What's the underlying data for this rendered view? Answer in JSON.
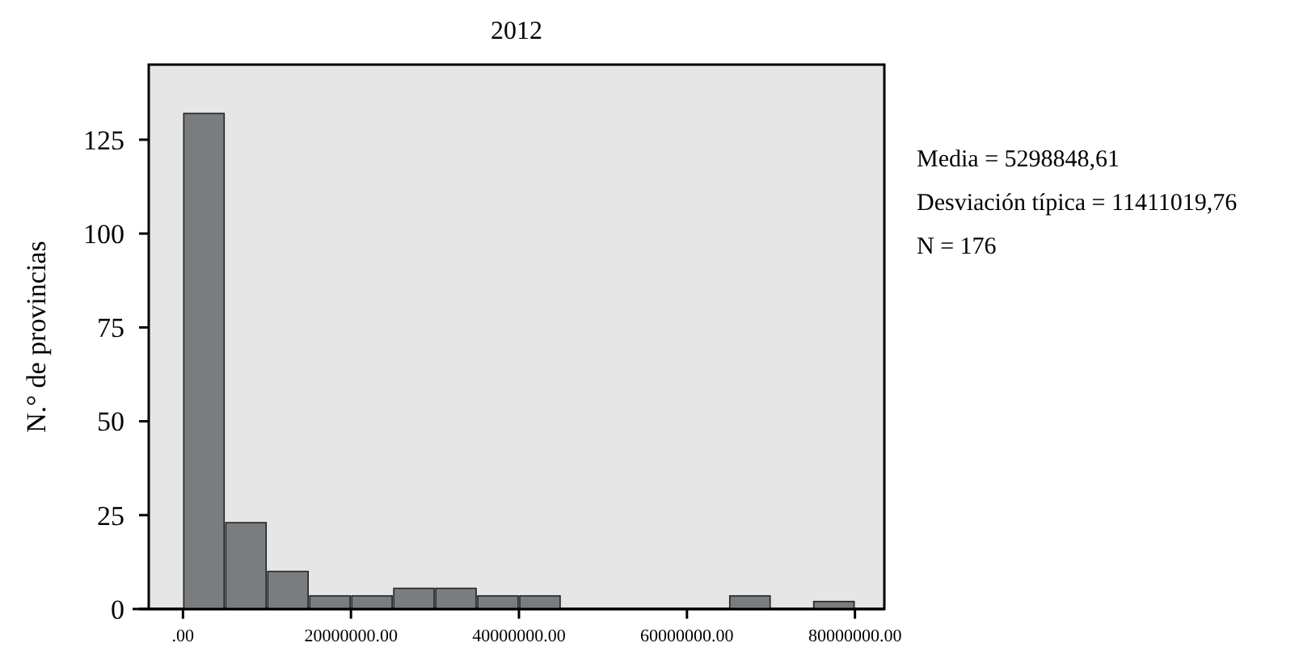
{
  "chart_data": {
    "type": "histogram",
    "title": "2012",
    "ylabel": "N.° de provincias",
    "bins": [
      0,
      5000000,
      10000000,
      15000000,
      20000000,
      25000000,
      30000000,
      35000000,
      40000000,
      45000000,
      50000000,
      55000000,
      60000000,
      65000000,
      70000000,
      75000000,
      80000000
    ],
    "values": [
      132,
      23,
      10,
      3.5,
      3.5,
      5.5,
      5.5,
      3.5,
      3.5,
      0,
      0,
      0,
      0,
      3.5,
      0,
      2
    ],
    "color": "#7a7d80",
    "xlim": [
      -6000000,
      83500000
    ],
    "xticks": [
      {
        "value": 0,
        "label": ".00"
      },
      {
        "value": 20000000,
        "label": "20000000.00"
      },
      {
        "value": 40000000,
        "label": "40000000.00"
      },
      {
        "value": 60000000,
        "label": "60000000.00"
      },
      {
        "value": 80000000,
        "label": "80000000.00"
      }
    ],
    "ylim": [
      0,
      145
    ],
    "yticks": [
      0,
      25,
      50,
      75,
      100,
      125
    ],
    "annotations": [
      "Media = 5298848,61",
      "Desviación típica = 11411019,76",
      "N = 176"
    ]
  }
}
